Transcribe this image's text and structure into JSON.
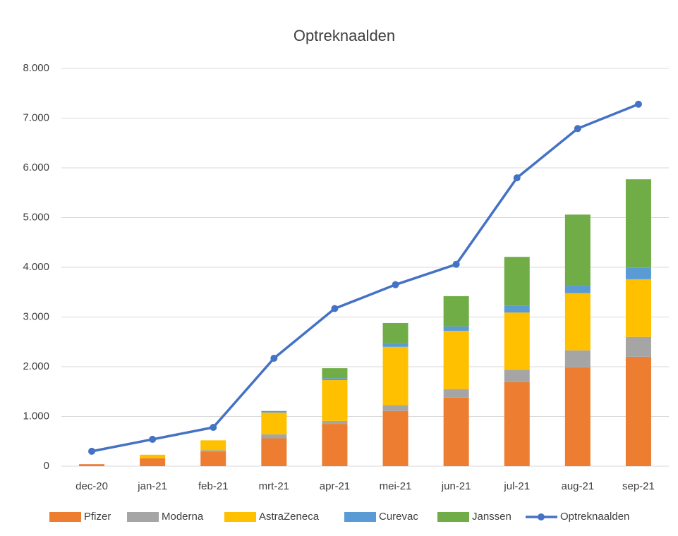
{
  "chart_data": {
    "type": "bar",
    "title": "Optreknaalden",
    "categories": [
      "dec-20",
      "jan-21",
      "feb-21",
      "mrt-21",
      "apr-21",
      "mei-21",
      "jun-21",
      "jul-21",
      "aug-21",
      "sep-21"
    ],
    "series": [
      {
        "name": "Pfizer",
        "color": "#ed7d31",
        "values": [
          40,
          160,
          290,
          560,
          850,
          1110,
          1380,
          1690,
          1990,
          2200
        ]
      },
      {
        "name": "Moderna",
        "color": "#a5a5a5",
        "values": [
          0,
          0,
          30,
          80,
          60,
          120,
          170,
          250,
          340,
          400
        ]
      },
      {
        "name": "AstraZeneca",
        "color": "#ffc000",
        "values": [
          0,
          70,
          200,
          440,
          820,
          1170,
          1170,
          1150,
          1150,
          1160
        ]
      },
      {
        "name": "Curevac",
        "color": "#5b9bd5",
        "values": [
          0,
          0,
          0,
          30,
          40,
          70,
          90,
          140,
          150,
          230
        ]
      },
      {
        "name": "Janssen",
        "color": "#70ad47",
        "values": [
          0,
          0,
          0,
          0,
          200,
          410,
          610,
          980,
          1430,
          1780
        ]
      },
      {
        "name": "Optreknaalden",
        "color": "#4472c4",
        "type": "line",
        "values": [
          300,
          540,
          780,
          2170,
          3170,
          3650,
          4060,
          5800,
          6790,
          7280
        ]
      }
    ],
    "ylim": [
      0,
      8000
    ],
    "yticks": [
      0,
      {
        "value": 1000,
        "label": "1.000"
      },
      {
        "value": 2000,
        "label": "2.000"
      },
      {
        "value": 3000,
        "label": "3.000"
      },
      {
        "value": 4000,
        "label": "4.000"
      },
      {
        "value": 5000,
        "label": "5.000"
      },
      {
        "value": 6000,
        "label": "6.000"
      },
      {
        "value": 7000,
        "label": "7.000"
      },
      {
        "value": 8000,
        "label": "8.000"
      }
    ],
    "grid": true,
    "stacked": true,
    "legend": "bottom"
  }
}
